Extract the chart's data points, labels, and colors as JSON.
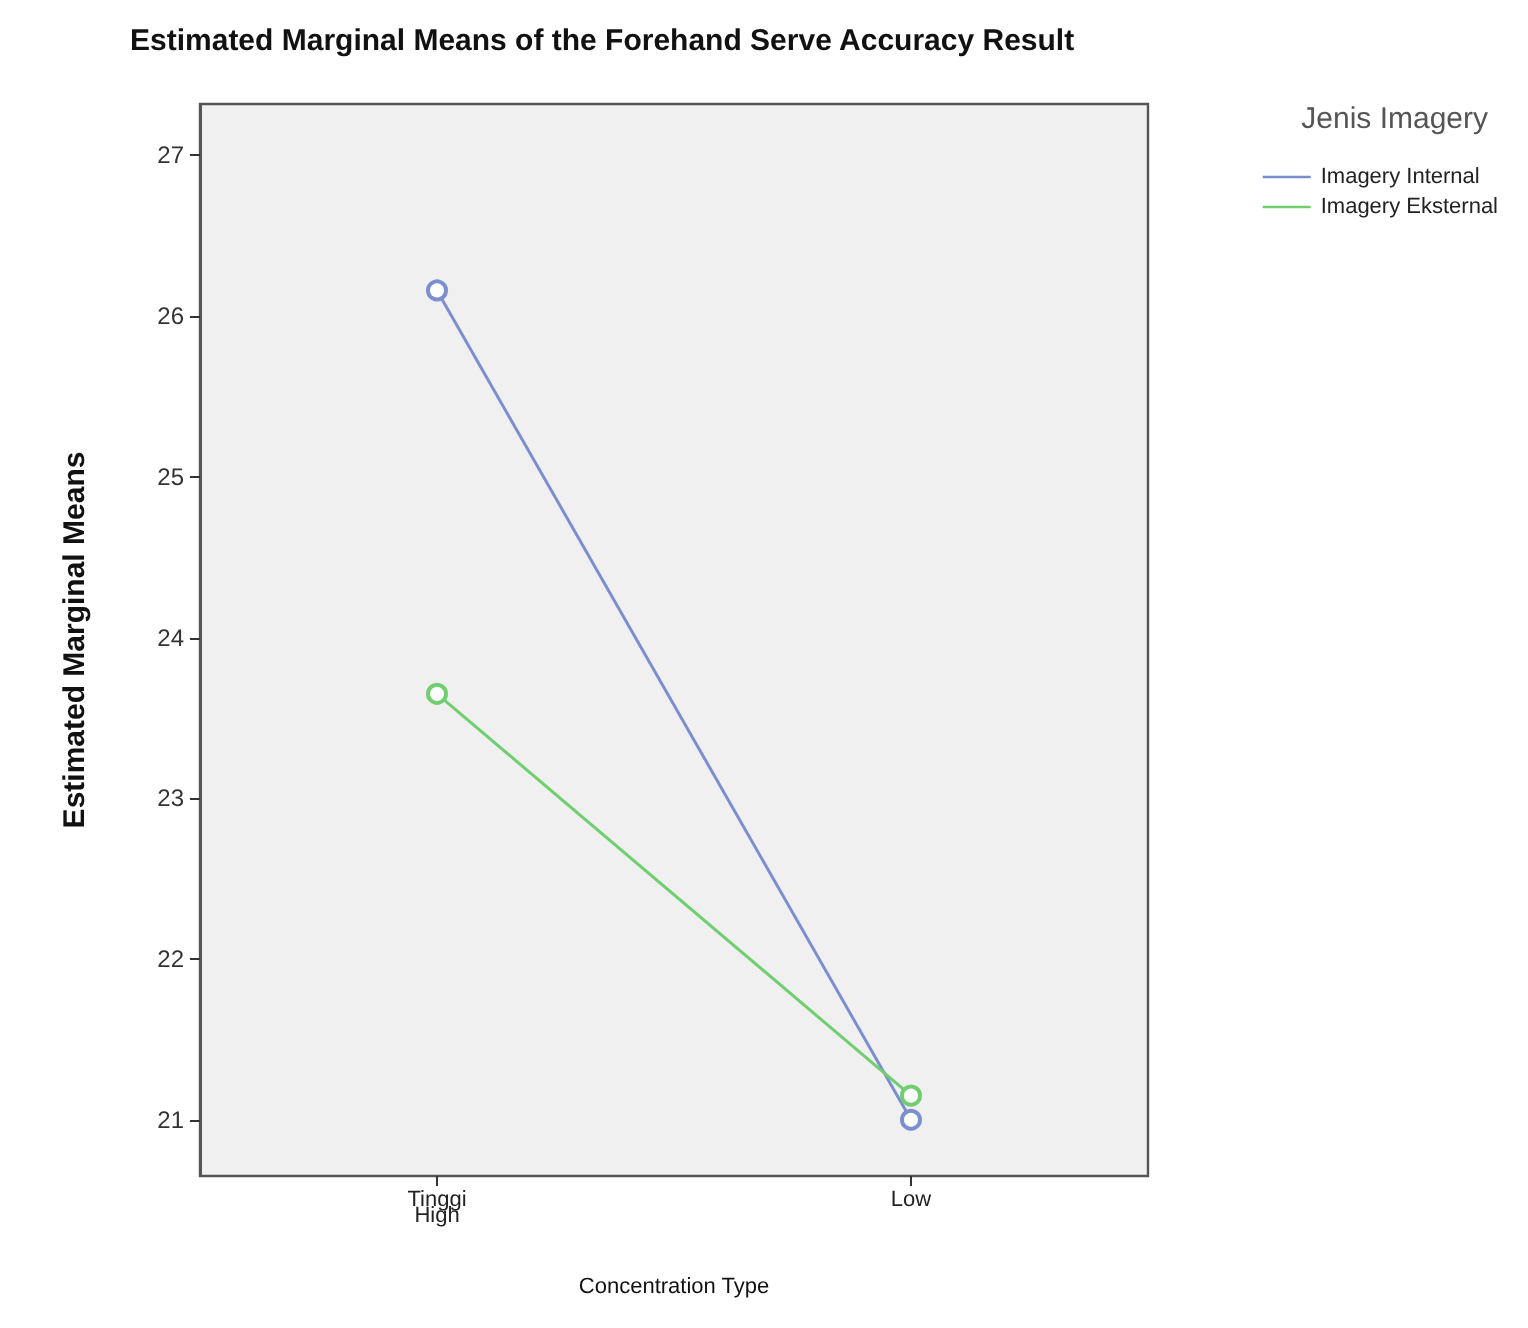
{
  "chart_data": {
    "type": "line",
    "title": "Estimated Marginal Means of the Forehand Serve Accuracy Result",
    "xlabel": "Concentration Type",
    "ylabel": "Estimated Marginal Means",
    "legend_title": "Jenis Imagery",
    "categories": [
      "Tinggi\nHigh",
      "Low"
    ],
    "series": [
      {
        "name": "Imagery Internal",
        "color": "#7b8fd0",
        "values": [
          26.16,
          21.0
        ]
      },
      {
        "name": "Imagery Eksternal",
        "color": "#6fcf6f",
        "values": [
          23.65,
          21.15
        ]
      }
    ],
    "ylim": [
      20.65,
      27.32
    ],
    "yticks": [
      21,
      22,
      23,
      24,
      25,
      26,
      27
    ],
    "grid": false,
    "legend": "right",
    "marker": "circle",
    "line_style": "solid"
  }
}
